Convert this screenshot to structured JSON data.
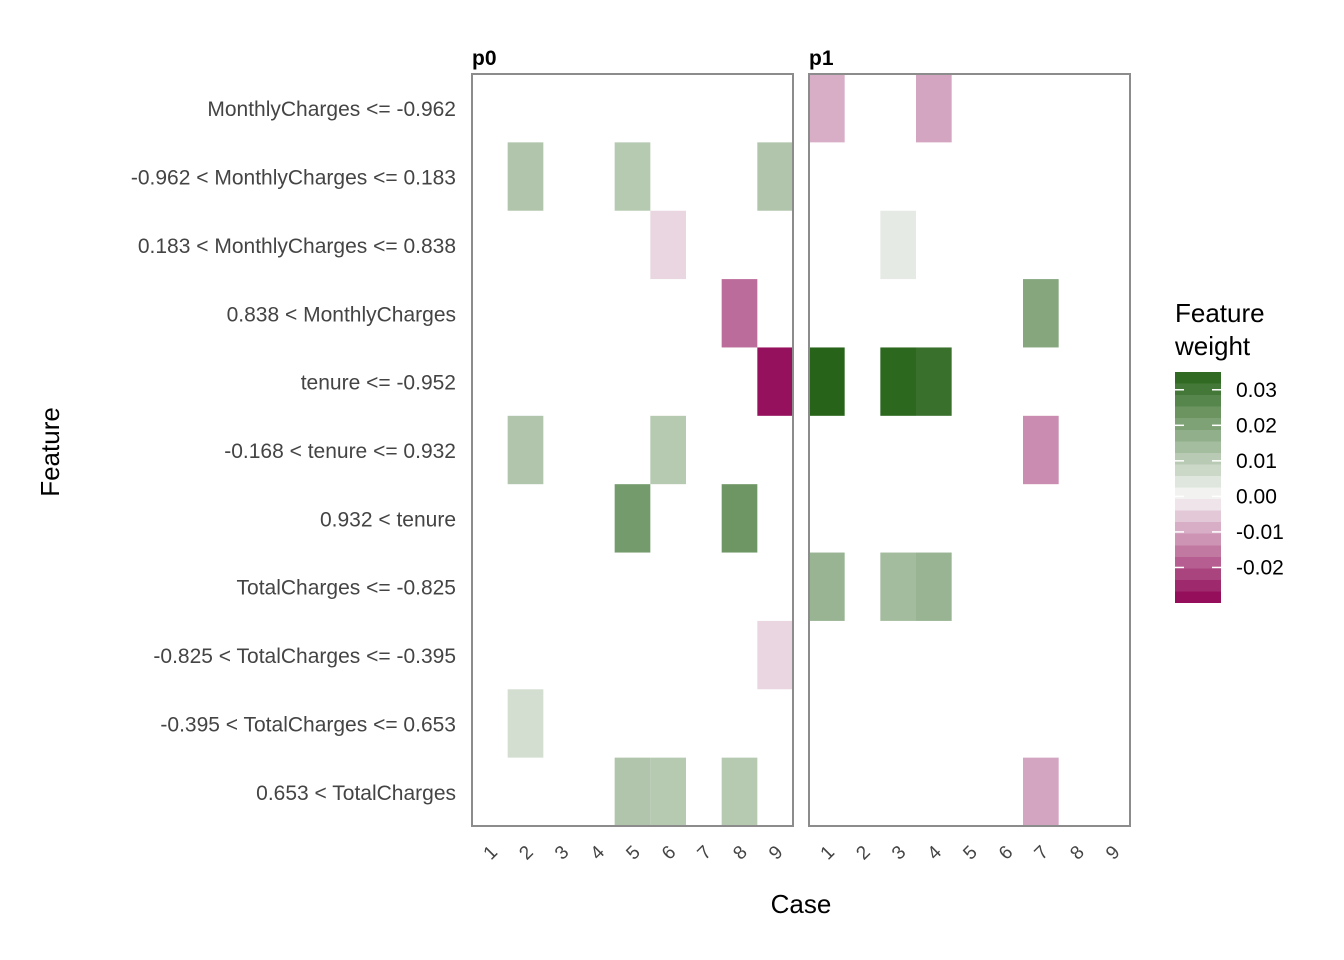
{
  "chart_data": {
    "type": "heatmap",
    "xlabel": "Case",
    "ylabel": "Feature",
    "legend": {
      "title_lines": [
        "Feature",
        "weight"
      ],
      "ticks": [
        0.03,
        0.02,
        0.01,
        0.0,
        -0.01,
        -0.02
      ],
      "tick_labels": [
        "0.03",
        "0.02",
        "0.01",
        "0.00",
        "-0.01",
        "-0.02"
      ],
      "range": [
        -0.03,
        0.035
      ],
      "position": "right",
      "low_color": "#8e0152",
      "mid_color": "#f7f7f7",
      "high_color": "#276419"
    },
    "features": [
      "MonthlyCharges <= -0.962",
      "-0.962 < MonthlyCharges <= 0.183",
      "0.183 < MonthlyCharges <= 0.838",
      "0.838 < MonthlyCharges",
      "tenure <= -0.952",
      "-0.168 < tenure <= 0.932",
      "0.932 < tenure",
      "TotalCharges <= -0.825",
      "-0.825 < TotalCharges <= -0.395",
      "-0.395 < TotalCharges <= 0.653",
      "0.653 < TotalCharges"
    ],
    "cases": [
      "1",
      "2",
      "3",
      "4",
      "5",
      "6",
      "7",
      "8",
      "9"
    ],
    "panels": [
      {
        "label": "p0",
        "cells": [
          {
            "case": "2",
            "feature": "-0.962 < MonthlyCharges <= 0.183",
            "value": 0.012
          },
          {
            "case": "5",
            "feature": "-0.962 < MonthlyCharges <= 0.183",
            "value": 0.011
          },
          {
            "case": "9",
            "feature": "-0.962 < MonthlyCharges <= 0.183",
            "value": 0.012
          },
          {
            "case": "6",
            "feature": "0.183 < MonthlyCharges <= 0.838",
            "value": -0.004
          },
          {
            "case": "8",
            "feature": "0.838 < MonthlyCharges",
            "value": -0.017
          },
          {
            "case": "9",
            "feature": "tenure <= -0.952",
            "value": -0.028
          },
          {
            "case": "2",
            "feature": "-0.168 < tenure <= 0.932",
            "value": 0.012
          },
          {
            "case": "6",
            "feature": "-0.168 < tenure <= 0.932",
            "value": 0.011
          },
          {
            "case": "5",
            "feature": "0.932 < tenure",
            "value": 0.022
          },
          {
            "case": "8",
            "feature": "0.932 < tenure",
            "value": 0.023
          },
          {
            "case": "9",
            "feature": "-0.825 < TotalCharges <= -0.395",
            "value": -0.004
          },
          {
            "case": "2",
            "feature": "-0.395 < TotalCharges <= 0.653",
            "value": 0.006
          },
          {
            "case": "5",
            "feature": "0.653 < TotalCharges",
            "value": 0.012
          },
          {
            "case": "6",
            "feature": "0.653 < TotalCharges",
            "value": 0.011
          },
          {
            "case": "8",
            "feature": "0.653 < TotalCharges",
            "value": 0.011
          }
        ]
      },
      {
        "label": "p1",
        "cells": [
          {
            "case": "1",
            "feature": "MonthlyCharges <= -0.962",
            "value": -0.009
          },
          {
            "case": "4",
            "feature": "MonthlyCharges <= -0.962",
            "value": -0.01
          },
          {
            "case": "3",
            "feature": "0.183 < MonthlyCharges <= 0.838",
            "value": 0.003
          },
          {
            "case": "7",
            "feature": "0.838 < MonthlyCharges",
            "value": 0.019
          },
          {
            "case": "1",
            "feature": "tenure <= -0.952",
            "value": 0.035
          },
          {
            "case": "3",
            "feature": "tenure <= -0.952",
            "value": 0.034
          },
          {
            "case": "4",
            "feature": "tenure <= -0.952",
            "value": 0.032
          },
          {
            "case": "7",
            "feature": "-0.168 < tenure <= 0.932",
            "value": -0.013
          },
          {
            "case": "1",
            "feature": "TotalCharges <= -0.825",
            "value": 0.016
          },
          {
            "case": "3",
            "feature": "TotalCharges <= -0.825",
            "value": 0.014
          },
          {
            "case": "4",
            "feature": "TotalCharges <= -0.825",
            "value": 0.016
          },
          {
            "case": "7",
            "feature": "0.653 < TotalCharges",
            "value": -0.01
          }
        ]
      }
    ]
  }
}
